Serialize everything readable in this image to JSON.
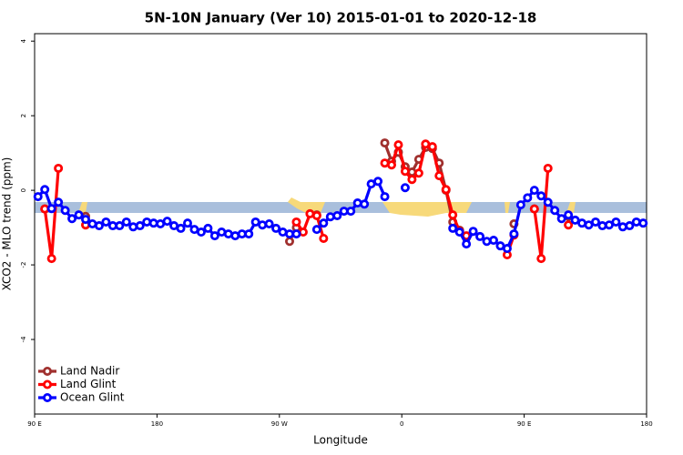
{
  "chart_data": {
    "type": "line",
    "title": "5N-10N January (Ver 10)   2015-01-01 to 2020-12-18",
    "x_label": "Longitude",
    "y_label": "XCO2 - MLO trend (ppm)",
    "xlim": [
      90,
      540
    ],
    "ylim": [
      -6,
      4.2
    ],
    "xticks": [
      {
        "value": 90,
        "label": "90 E"
      },
      {
        "value": 180,
        "label": "180"
      },
      {
        "value": 270,
        "label": "90 W"
      },
      {
        "value": 360,
        "label": "0"
      },
      {
        "value": 450,
        "label": "90 E"
      },
      {
        "value": 540,
        "label": "180"
      }
    ],
    "yticks": [
      -4,
      -2,
      0,
      2,
      4
    ],
    "legend": "bottom-left",
    "x": [
      92.5,
      97.5,
      102.5,
      107.5,
      112.5,
      117.5,
      122.5,
      127.5,
      132.5,
      137.5,
      142.5,
      147.5,
      152.5,
      157.5,
      162.5,
      167.5,
      172.5,
      177.5,
      182.5,
      187.5,
      192.5,
      197.5,
      202.5,
      207.5,
      212.5,
      217.5,
      222.5,
      227.5,
      232.5,
      237.5,
      242.5,
      247.5,
      252.5,
      257.5,
      262.5,
      267.5,
      272.5,
      277.5,
      282.5,
      287.5,
      292.5,
      297.5,
      302.5,
      307.5,
      312.5,
      317.5,
      322.5,
      327.5,
      332.5,
      337.5,
      342.5,
      347.5,
      352.5,
      357.5,
      362.5,
      367.5,
      372.5,
      377.5,
      382.5,
      387.5,
      392.5,
      397.5,
      402.5,
      407.5,
      412.5,
      417.5,
      422.5,
      427.5,
      432.5,
      437.5,
      442.5,
      447.5,
      452.5,
      457.5,
      462.5,
      467.5,
      472.5,
      477.5,
      482.5,
      487.5,
      492.5,
      497.5,
      502.5,
      507.5,
      512.5,
      517.5,
      522.5,
      527.5,
      532.5,
      537.5
    ],
    "series": [
      {
        "name": "Land Nadir",
        "color": "#a0302e",
        "values": [
          null,
          -0.5,
          null,
          null,
          null,
          null,
          null,
          -0.7,
          null,
          null,
          null,
          null,
          null,
          null,
          null,
          null,
          null,
          null,
          null,
          null,
          null,
          null,
          null,
          null,
          null,
          null,
          null,
          null,
          null,
          null,
          null,
          null,
          null,
          null,
          null,
          null,
          null,
          -1.37,
          -1.0,
          null,
          null,
          -0.66,
          null,
          null,
          null,
          null,
          null,
          null,
          null,
          null,
          null,
          1.27,
          0.78,
          1.02,
          0.63,
          0.49,
          0.83,
          1.15,
          1.12,
          0.73,
          0,
          -0.85,
          -1.07,
          -1.27,
          null,
          null,
          null,
          null,
          null,
          null,
          -0.9,
          null,
          null,
          -0.5,
          null,
          null,
          null,
          null,
          -0.7,
          null,
          null,
          null,
          null,
          null,
          null,
          null,
          null,
          null,
          null,
          null
        ]
      },
      {
        "name": "Land Glint",
        "color": "#ff0000",
        "values": [
          null,
          -0.5,
          -1.83,
          0.59,
          null,
          null,
          null,
          -0.93,
          null,
          null,
          null,
          null,
          null,
          null,
          null,
          null,
          null,
          null,
          null,
          null,
          null,
          null,
          null,
          null,
          null,
          null,
          null,
          null,
          null,
          null,
          null,
          null,
          null,
          null,
          null,
          null,
          null,
          null,
          -0.85,
          -1.12,
          -0.63,
          -0.68,
          -1.29,
          null,
          null,
          null,
          null,
          null,
          null,
          null,
          null,
          0.73,
          0.68,
          1.22,
          0.51,
          0.29,
          0.46,
          1.24,
          1.17,
          0.39,
          0.02,
          -0.66,
          -1.1,
          -1.22,
          null,
          null,
          null,
          null,
          null,
          -1.73,
          -1.2,
          null,
          null,
          -0.5,
          -1.83,
          0.59,
          null,
          null,
          -0.93,
          null,
          null,
          null,
          null,
          null,
          null,
          null,
          null,
          null,
          null,
          null
        ]
      },
      {
        "name": "Ocean Glint",
        "color": "#0000ff",
        "values": [
          -0.17,
          0.02,
          -0.49,
          -0.32,
          -0.54,
          -0.76,
          -0.66,
          -0.78,
          -0.9,
          -0.95,
          -0.85,
          -0.95,
          -0.95,
          -0.85,
          -0.98,
          -0.95,
          -0.85,
          -0.88,
          -0.9,
          -0.83,
          -0.95,
          -1.02,
          -0.88,
          -1.05,
          -1.12,
          -1.02,
          -1.22,
          -1.12,
          -1.17,
          -1.22,
          -1.17,
          -1.17,
          -0.85,
          -0.93,
          -0.9,
          -1.02,
          -1.12,
          -1.17,
          -1.17,
          null,
          null,
          -1.05,
          -0.88,
          -0.71,
          -0.68,
          -0.56,
          -0.56,
          -0.34,
          -0.37,
          0.17,
          0.24,
          -0.17,
          null,
          null,
          0.07,
          null,
          null,
          null,
          null,
          null,
          null,
          -1.02,
          -1.12,
          -1.44,
          -1.1,
          -1.24,
          -1.37,
          -1.34,
          -1.49,
          -1.56,
          -1.17,
          -0.39,
          -0.2,
          0,
          -0.15,
          -0.32,
          -0.54,
          -0.76,
          -0.66,
          -0.8,
          -0.88,
          -0.93,
          -0.85,
          -0.95,
          -0.93,
          -0.85,
          -0.98,
          -0.95,
          -0.85,
          -0.88
        ]
      }
    ]
  }
}
